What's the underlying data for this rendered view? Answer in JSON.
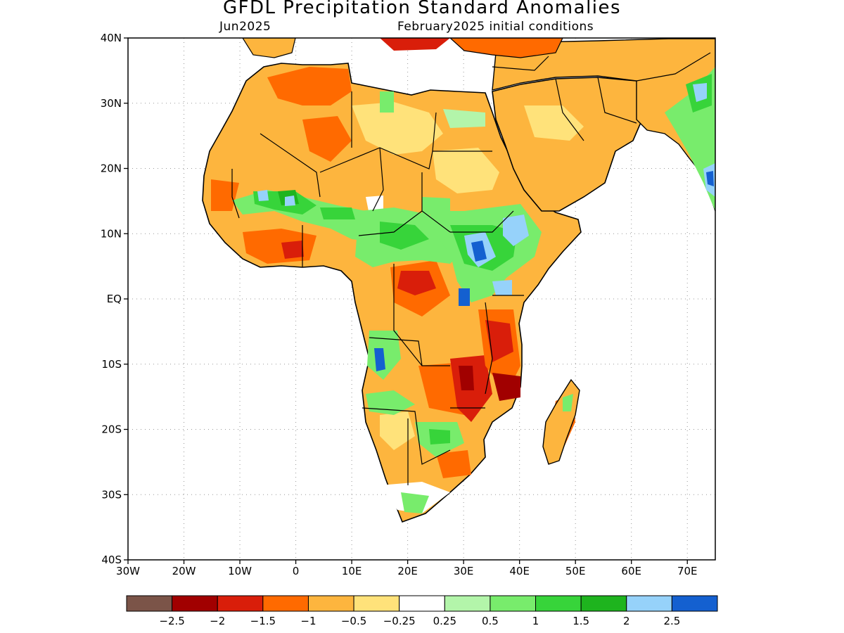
{
  "title": "GFDL Precipitation Standard Anomalies",
  "subtitle_left": "Jun2025",
  "subtitle_right": "February2025 initial conditions",
  "lat_labels": [
    "40N",
    "30N",
    "20N",
    "10N",
    "EQ",
    "10S",
    "20S",
    "30S",
    "40S"
  ],
  "lon_labels": [
    "30W",
    "20W",
    "10W",
    "0",
    "10E",
    "20E",
    "30E",
    "40E",
    "50E",
    "60E",
    "70E"
  ],
  "colorbar": {
    "colors": [
      "#7b5448",
      "#a10000",
      "#d91e0a",
      "#ff6a00",
      "#fdb53e",
      "#ffe27a",
      "#ffffff",
      "#b3f5aa",
      "#78ec6c",
      "#37d43a",
      "#1eb41e",
      "#96d2fa",
      "#1460d0"
    ],
    "labels": [
      "-2.5",
      "-2",
      "-1.5",
      "-1",
      "-0.5",
      "-0.25",
      "0.25",
      "0.5",
      "1",
      "1.5",
      "2",
      "2.5"
    ]
  },
  "palette": {
    "very_dry": "#a10000",
    "dry_strong": "#d91e0a",
    "dry": "#ff6a00",
    "dry_moderate": "#fdb53e",
    "dry_weak": "#ffe27a",
    "neutral": "#ffffff",
    "wet_weak": "#b3f5aa",
    "wet": "#78ec6c",
    "wet_moderate": "#37d43a",
    "wet_strong": "#1eb41e",
    "very_wet": "#96d2fa",
    "extreme_wet": "#1460d0"
  }
}
